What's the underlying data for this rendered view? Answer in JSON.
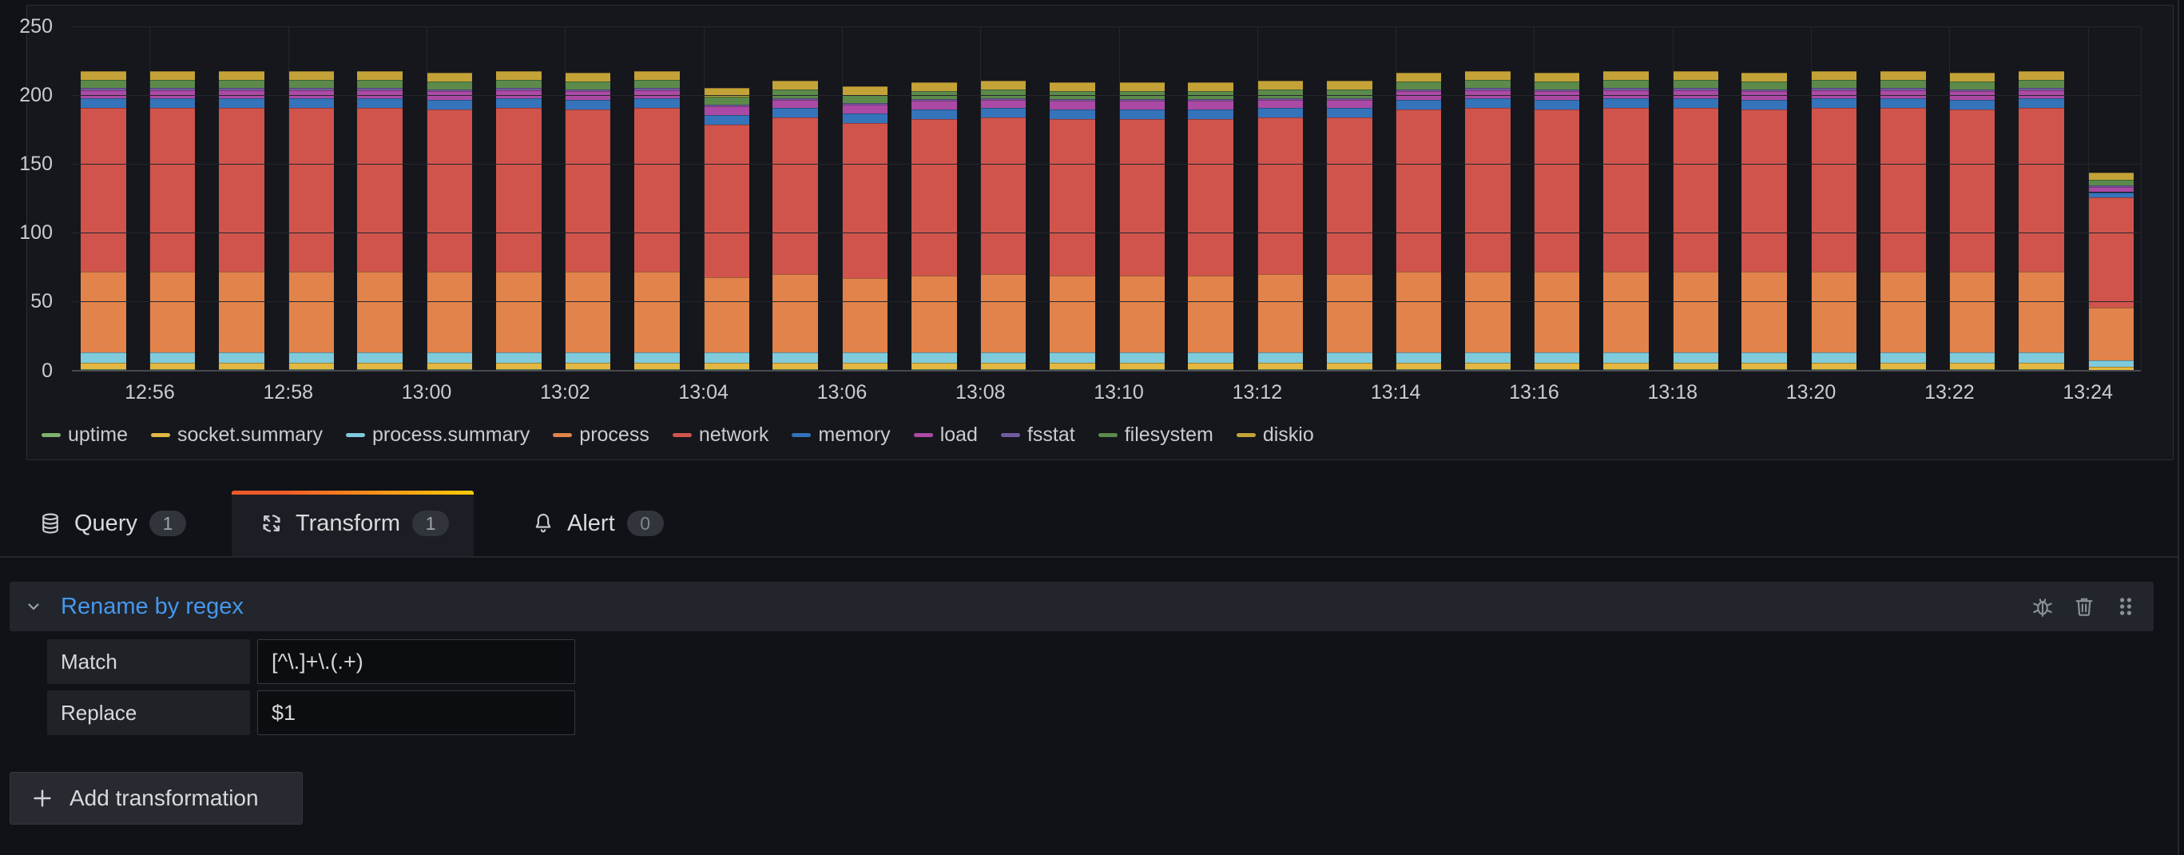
{
  "chart_data": {
    "type": "bar",
    "stacked": true,
    "grid": true,
    "legend_position": "bottom",
    "ylim": [
      0,
      250
    ],
    "yticks": [
      0,
      50,
      100,
      150,
      200,
      250
    ],
    "x": [
      "12:55",
      "12:56",
      "12:57",
      "12:58",
      "12:59",
      "13:00",
      "13:01",
      "13:02",
      "13:03",
      "13:04",
      "13:05",
      "13:06",
      "13:07",
      "13:08",
      "13:09",
      "13:10",
      "13:11",
      "13:12",
      "13:13",
      "13:14",
      "13:15",
      "13:16",
      "13:17",
      "13:18",
      "13:19",
      "13:20",
      "13:21",
      "13:22",
      "13:23",
      "13:24"
    ],
    "x_tick_labels": [
      "12:56",
      "12:58",
      "13:00",
      "13:02",
      "13:04",
      "13:06",
      "13:08",
      "13:10",
      "13:12",
      "13:14",
      "13:16",
      "13:18",
      "13:20",
      "13:22",
      "13:24"
    ],
    "series": [
      {
        "name": "uptime",
        "color": "#7eb26d",
        "values": [
          0.8,
          0.8,
          0.8,
          0.8,
          0.8,
          0.8,
          0.8,
          0.8,
          0.8,
          0.8,
          0.8,
          0.8,
          0.8,
          0.8,
          0.8,
          0.8,
          0.8,
          0.8,
          0.8,
          0.8,
          0.8,
          0.8,
          0.8,
          0.8,
          0.8,
          0.8,
          0.8,
          0.8,
          0.8,
          0.5
        ]
      },
      {
        "name": "socket.summary",
        "color": "#e2b842",
        "values": [
          5,
          5,
          5,
          5,
          5,
          5,
          5,
          5,
          5,
          5,
          5,
          5,
          5,
          5,
          5,
          5,
          5,
          5,
          5,
          5,
          5,
          5,
          5,
          5,
          5,
          5,
          5,
          5,
          5,
          2
        ]
      },
      {
        "name": "process.summary",
        "color": "#7fcbdc",
        "values": [
          7,
          7,
          7,
          7,
          7,
          7,
          7,
          7,
          7,
          7,
          7,
          7,
          7,
          7,
          7,
          7,
          7,
          7,
          7,
          7,
          7,
          7,
          7,
          7,
          7,
          7,
          7,
          7,
          7,
          5
        ]
      },
      {
        "name": "process",
        "color": "#e2834b",
        "values": [
          59,
          59,
          59,
          59,
          59,
          59,
          59,
          59,
          59,
          55,
          57,
          54,
          56,
          57,
          56,
          56,
          56,
          57,
          57,
          59,
          59,
          59,
          59,
          59,
          59,
          59,
          59,
          59,
          59,
          38
        ]
      },
      {
        "name": "network",
        "color": "#d0544c",
        "values": [
          119,
          119,
          119,
          119,
          119,
          118,
          119,
          118,
          119,
          111,
          114,
          113,
          114,
          114,
          114,
          114,
          114,
          114,
          114,
          118,
          119,
          118,
          119,
          119,
          118,
          119,
          119,
          118,
          119,
          80
        ]
      },
      {
        "name": "memory",
        "color": "#3573ba",
        "values": [
          7,
          7,
          7,
          7,
          7,
          7,
          7,
          7,
          7,
          7,
          7,
          7,
          7,
          7,
          7,
          7,
          7,
          7,
          7,
          7,
          7,
          7,
          7,
          7,
          7,
          7,
          7,
          7,
          7,
          4
        ]
      },
      {
        "name": "load",
        "color": "#ab4aa5",
        "values": [
          6,
          6,
          6,
          6,
          6,
          6,
          6,
          6,
          6,
          6,
          6,
          6,
          6,
          6,
          6,
          6,
          6,
          6,
          6,
          6,
          6,
          6,
          6,
          6,
          6,
          6,
          6,
          6,
          6,
          4
        ]
      },
      {
        "name": "fsstat",
        "color": "#705da0",
        "values": [
          1.2,
          1.2,
          1.2,
          1.2,
          1.2,
          1.2,
          1.2,
          1.2,
          1.2,
          1.2,
          1.2,
          1.2,
          1.2,
          1.2,
          1.2,
          1.2,
          1.2,
          1.2,
          1.2,
          1.2,
          1.2,
          1.2,
          1.2,
          1.2,
          1.2,
          1.2,
          1.2,
          1.2,
          1.2,
          1
        ]
      },
      {
        "name": "filesystem",
        "color": "#5b8a4a",
        "values": [
          6,
          6,
          6,
          6,
          6,
          6,
          6,
          6,
          6,
          6,
          6,
          6,
          6,
          6,
          6,
          6,
          6,
          6,
          6,
          6,
          6,
          6,
          6,
          6,
          6,
          6,
          6,
          6,
          6,
          4
        ]
      },
      {
        "name": "diskio",
        "color": "#c4a237",
        "values": [
          6.5,
          6.5,
          6.5,
          6.5,
          6.5,
          6.5,
          6.5,
          6.5,
          6.5,
          6.5,
          6.5,
          6.5,
          6.5,
          6.5,
          6.5,
          6.5,
          6.5,
          6.5,
          6.5,
          6.5,
          6.5,
          6.5,
          6.5,
          6.5,
          6.5,
          6.5,
          6.5,
          6.5,
          6.5,
          5
        ]
      }
    ]
  },
  "tabs": {
    "query": {
      "label": "Query",
      "count": "1"
    },
    "transform": {
      "label": "Transform",
      "count": "1"
    },
    "alert": {
      "label": "Alert",
      "count": "0"
    }
  },
  "transformation": {
    "title": "Rename by regex",
    "fields": [
      {
        "label": "Match",
        "value": "[^\\.]+\\.(.+)"
      },
      {
        "label": "Replace",
        "value": "$1"
      }
    ]
  },
  "buttons": {
    "add_transformation": "Add transformation"
  },
  "colors": {
    "page_background": "#111217",
    "panel_background": "#15171c",
    "card_background": "#22252b",
    "active_tab_accent_start": "#f05a28",
    "active_tab_accent_end": "#fbca0a",
    "link_blue": "#4697ee"
  }
}
